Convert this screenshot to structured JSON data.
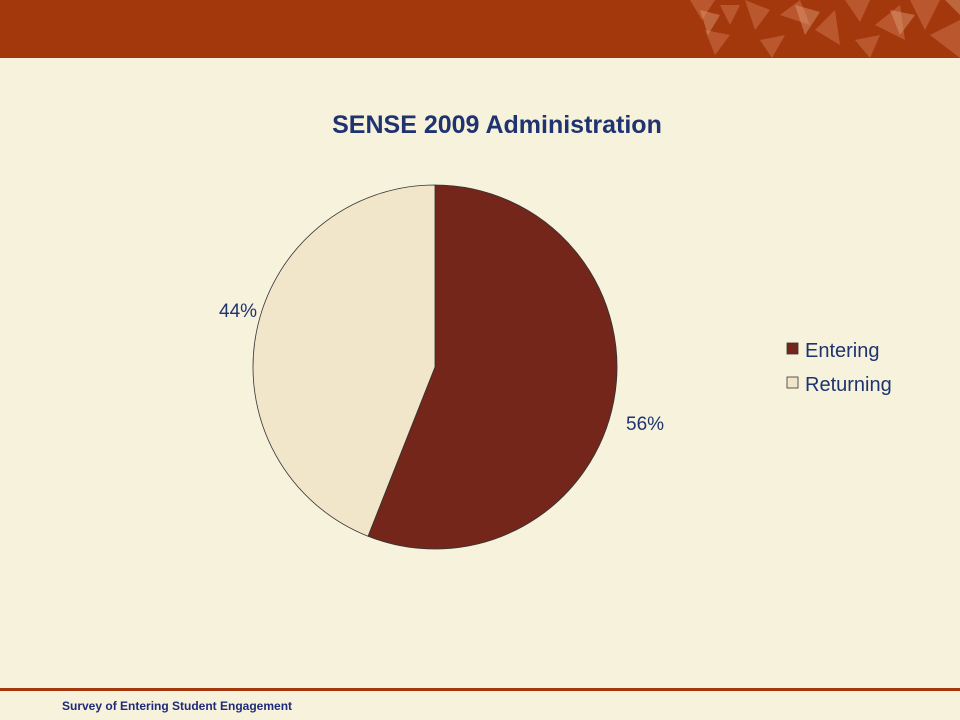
{
  "footer": {
    "text": "Survey of Entering Student Engagement"
  },
  "colors": {
    "header": "#a3380d",
    "background": "#f7f2dc",
    "text": "#1e3370"
  },
  "chart_data": {
    "type": "pie",
    "title": "SENSE 2009 Administration",
    "labels": [
      "Entering",
      "Returning"
    ],
    "values": [
      56,
      44
    ],
    "value_labels": [
      "56%",
      "44%"
    ],
    "colors": [
      "#74261a",
      "#f1e6c9"
    ],
    "legend_position": "right"
  }
}
